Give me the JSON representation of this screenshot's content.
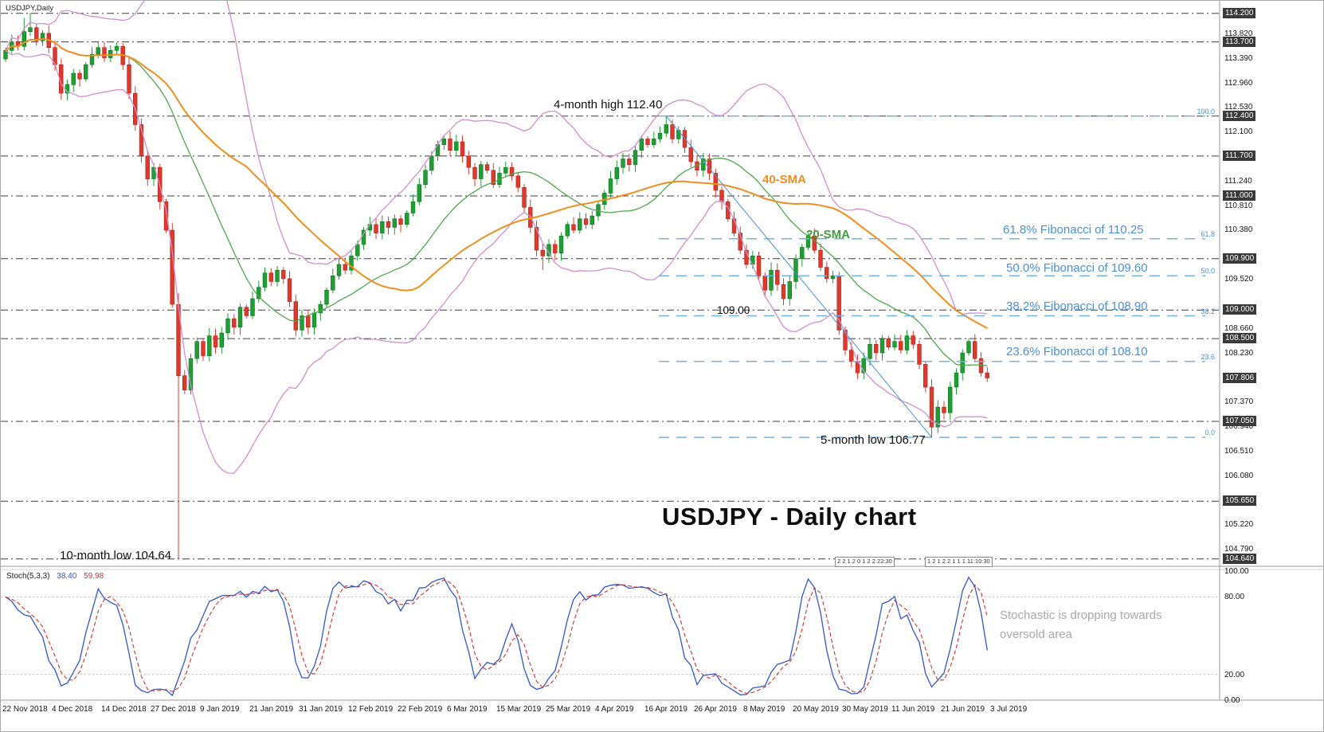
{
  "window": {
    "symbol_label": "USDJPY,Daily"
  },
  "chart_data": {
    "type": "candlestick",
    "title": "USDJPY - Daily chart",
    "x_axis": {
      "dates": [
        "22 Nov 2018",
        "4 Dec 2018",
        "14 Dec 2018",
        "27 Dec 2018",
        "9 Jan 2019",
        "21 Jan 2019",
        "31 Jan 2019",
        "12 Feb 2019",
        "22 Feb 2019",
        "6 Mar 2019",
        "15 Mar 2019",
        "25 Mar 2019",
        "4 Apr 2019",
        "16 Apr 2019",
        "26 Apr 2019",
        "8 May 2019",
        "20 May 2019",
        "30 May 2019",
        "11 Jun 2019",
        "21 Jun 2019",
        "3 Jul 2019"
      ],
      "candles_per_tick": 8
    },
    "y_axis": {
      "price_max": 114.42,
      "price_min": 104.51,
      "scale_ticks": [
        "113.820",
        "113.390",
        "112.960",
        "112.530",
        "112.100",
        "111.240",
        "110.810",
        "110.380",
        "109.520",
        "108.660",
        "108.230",
        "107.370",
        "106.940",
        "106.510",
        "106.080",
        "105.220",
        "104.790"
      ],
      "level_lines": [
        "114.200",
        "113.700",
        "112.400",
        "111.700",
        "111.000",
        "109.900",
        "109.000",
        "108.500",
        "107.050",
        "105.650",
        "104.640"
      ],
      "current_price": "107.806"
    },
    "candles": {
      "first_open": 113.4,
      "closes": [
        113.55,
        113.7,
        113.62,
        113.88,
        113.95,
        113.72,
        113.85,
        113.6,
        113.3,
        112.8,
        112.95,
        113.15,
        113.05,
        113.3,
        113.48,
        113.6,
        113.42,
        113.55,
        113.62,
        113.3,
        112.8,
        112.25,
        111.7,
        111.3,
        111.5,
        110.9,
        110.4,
        109.1,
        107.85,
        107.6,
        108.15,
        108.45,
        108.2,
        108.55,
        108.35,
        108.6,
        108.85,
        108.7,
        109.05,
        108.9,
        109.2,
        109.4,
        109.65,
        109.5,
        109.7,
        109.55,
        109.15,
        108.65,
        108.9,
        108.7,
        108.95,
        109.1,
        109.35,
        109.6,
        109.8,
        109.7,
        109.95,
        110.15,
        110.4,
        110.5,
        110.35,
        110.55,
        110.45,
        110.6,
        110.5,
        110.7,
        110.9,
        111.2,
        111.45,
        111.7,
        111.9,
        112.0,
        111.8,
        111.95,
        111.7,
        111.5,
        111.3,
        111.55,
        111.45,
        111.2,
        111.4,
        111.5,
        111.35,
        111.15,
        110.8,
        110.45,
        110.05,
        109.95,
        110.15,
        110.0,
        110.3,
        110.5,
        110.4,
        110.6,
        110.5,
        110.65,
        110.85,
        111.05,
        111.3,
        111.5,
        111.65,
        111.55,
        111.8,
        112.0,
        111.9,
        112.0,
        112.1,
        112.25,
        112.0,
        112.15,
        111.85,
        111.6,
        111.45,
        111.65,
        111.4,
        111.1,
        110.9,
        110.6,
        110.35,
        110.05,
        109.8,
        109.95,
        109.6,
        109.35,
        109.7,
        109.45,
        109.2,
        109.5,
        109.9,
        110.1,
        110.3,
        110.05,
        109.75,
        109.55,
        109.6,
        108.65,
        108.3,
        108.1,
        107.9,
        108.15,
        108.4,
        108.25,
        108.5,
        108.35,
        108.45,
        108.3,
        108.55,
        108.4,
        108.05,
        107.65,
        106.95,
        107.3,
        107.2,
        107.65,
        107.9,
        108.25,
        108.45,
        108.15,
        107.9,
        107.81
      ],
      "overrides": {
        "3": {
          "high": 114.12
        },
        "4": {
          "high": 114.21
        },
        "28": {
          "low": 104.64,
          "high": 109.3
        },
        "87": {
          "low": 109.7
        },
        "107": {
          "high": 112.4
        },
        "150": {
          "low": 106.77
        }
      }
    },
    "indicators": {
      "sma20": {
        "period": 20,
        "color": "#4ea84e",
        "label": "20-SMA"
      },
      "sma40": {
        "period": 40,
        "color": "#ef8e1e",
        "label": "40-SMA"
      },
      "bollinger": {
        "period": 20,
        "deviation": 2,
        "color": "#cf8fcf"
      }
    },
    "fibonacci": {
      "color": "#6fb3e8",
      "levels": [
        {
          "pct": "100.0",
          "price": 112.4
        },
        {
          "pct": "61.8",
          "price": 110.25
        },
        {
          "pct": "50.0",
          "price": 109.6
        },
        {
          "pct": "38.2",
          "price": 108.9
        },
        {
          "pct": "23.6",
          "price": 108.1
        },
        {
          "pct": "0.0",
          "price": 106.77
        }
      ]
    },
    "trendline": {
      "from_index": 107,
      "from_price": 112.4,
      "to_index": 150,
      "to_price": 106.77,
      "color": "#4a90d9"
    },
    "stochastic": {
      "label": "Stoch(5,3,3)",
      "k_value": "38.40",
      "d_value": "59.98",
      "k_period": 5,
      "k_slowing": 3,
      "d_period": 3,
      "levels": [
        80,
        20
      ],
      "axis_labels": [
        "100.00",
        "80.00",
        "20.00",
        "0.00"
      ],
      "k_color": "#3355cc",
      "d_color": "#cc3333"
    }
  },
  "annotations": {
    "high_label": "4-month high 112.40",
    "low_label": "5-month low 106.77",
    "low10_label": "10-month low 104.64",
    "price_109": "109.00",
    "fib_618": "61.8% Fibonacci of 110.25",
    "fib_500": "50.0% Fibonacci of 109.60",
    "fib_382": "38.2% Fibonacci of 108.90",
    "fib_236": "23.6% Fibonacci of 108.10",
    "sma40_label": "40-SMA",
    "sma20_label": "20-SMA",
    "chart_title": "USDJPY - Daily chart",
    "stoch_note_line1": "Stochastic is dropping towards",
    "stoch_note_line2": "oversold area",
    "footnote_box1": "2 2 1 2 0 1 2 2 22:30",
    "footnote_box2": "1 2 1 2 2 1 1 1 11:10:30"
  }
}
